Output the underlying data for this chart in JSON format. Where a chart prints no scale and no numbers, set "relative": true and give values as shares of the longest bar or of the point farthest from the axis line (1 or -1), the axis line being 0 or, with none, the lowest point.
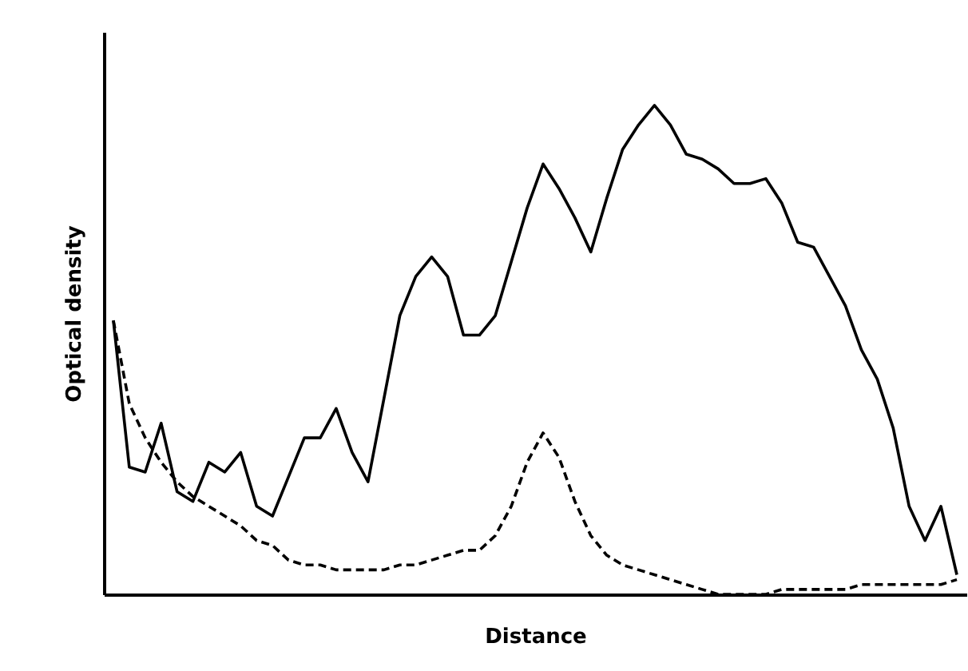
{
  "chart_data": {
    "type": "line",
    "xlabel": "Distance",
    "ylabel": "Optical density",
    "relative": true,
    "grid": false,
    "legend": false,
    "categories": [
      null,
      null,
      null,
      null,
      null,
      null,
      null,
      null,
      null,
      null,
      null,
      null,
      null,
      null,
      null,
      null,
      null,
      null,
      null,
      null,
      null,
      null,
      null,
      null,
      null,
      null,
      null,
      null,
      null,
      null,
      null,
      null,
      null,
      null,
      null,
      null,
      null,
      null,
      null,
      null,
      null,
      null,
      null,
      null,
      null,
      null,
      null,
      null,
      null,
      null,
      null,
      null,
      null,
      null
    ],
    "series": [
      {
        "color": "#000000",
        "line_style": "solid",
        "values": [
          0.56,
          0.26,
          0.25,
          0.35,
          0.21,
          0.19,
          0.27,
          0.25,
          0.29,
          0.18,
          0.16,
          0.24,
          0.32,
          0.32,
          0.38,
          0.29,
          0.23,
          0.4,
          0.57,
          0.65,
          0.69,
          0.65,
          0.53,
          0.53,
          0.57,
          0.68,
          0.79,
          0.88,
          0.83,
          0.77,
          0.7,
          0.81,
          0.91,
          0.96,
          1.0,
          0.96,
          0.9,
          0.89,
          0.87,
          0.84,
          0.84,
          0.85,
          0.8,
          0.72,
          0.71,
          0.65,
          0.59,
          0.5,
          0.44,
          0.34,
          0.18,
          0.11,
          0.18,
          0.04
        ]
      },
      {
        "color": "#000000",
        "line_style": "dashed",
        "values": [
          0.56,
          0.39,
          0.32,
          0.27,
          0.23,
          0.2,
          0.18,
          0.16,
          0.14,
          0.11,
          0.1,
          0.07,
          0.06,
          0.06,
          0.05,
          0.05,
          0.05,
          0.05,
          0.06,
          0.06,
          0.07,
          0.08,
          0.09,
          0.09,
          0.12,
          0.18,
          0.27,
          0.33,
          0.28,
          0.19,
          0.12,
          0.08,
          0.06,
          0.05,
          0.04,
          0.03,
          0.02,
          0.01,
          0,
          0,
          0,
          0,
          0.01,
          0.01,
          0.01,
          0.01,
          0.01,
          0.02,
          0.02,
          0.02,
          0.02,
          0.02,
          0.02,
          0.03
        ]
      }
    ]
  }
}
